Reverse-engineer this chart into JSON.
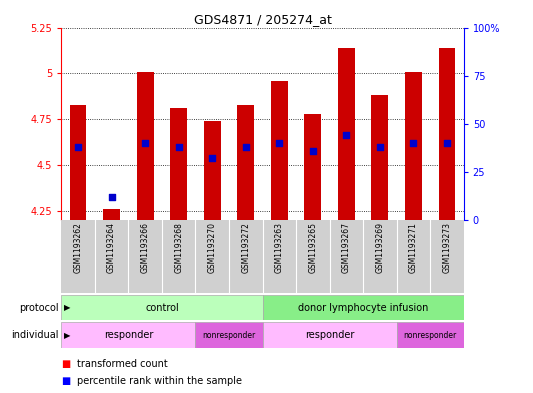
{
  "title": "GDS4871 / 205274_at",
  "samples": [
    "GSM1193262",
    "GSM1193264",
    "GSM1193266",
    "GSM1193268",
    "GSM1193270",
    "GSM1193272",
    "GSM1193263",
    "GSM1193265",
    "GSM1193267",
    "GSM1193269",
    "GSM1193271",
    "GSM1193273"
  ],
  "transformed_counts": [
    4.83,
    4.26,
    5.01,
    4.81,
    4.74,
    4.83,
    4.96,
    4.78,
    5.14,
    4.88,
    5.01,
    5.14
  ],
  "percentile_ranks": [
    38,
    12,
    40,
    38,
    32,
    38,
    40,
    36,
    44,
    38,
    40,
    40
  ],
  "ylim_left": [
    4.2,
    5.25
  ],
  "ylim_right": [
    0,
    100
  ],
  "right_ticks": [
    0,
    25,
    50,
    75,
    100
  ],
  "right_tick_labels": [
    "0",
    "25",
    "50",
    "75",
    "100%"
  ],
  "left_ticks": [
    4.25,
    4.5,
    4.75,
    5.0,
    5.25
  ],
  "left_tick_labels": [
    "4.25",
    "4.5",
    "4.75",
    "5",
    "5.25"
  ],
  "bar_color": "#cc0000",
  "dot_color": "#0000cc",
  "plot_bg": "#ffffff",
  "protocol_groups": [
    {
      "label": "control",
      "start": 0,
      "end": 6,
      "color": "#bbffbb"
    },
    {
      "label": "donor lymphocyte infusion",
      "start": 6,
      "end": 12,
      "color": "#88ee88"
    }
  ],
  "individual_groups": [
    {
      "label": "responder",
      "start": 0,
      "end": 4,
      "color": "#ffbbff"
    },
    {
      "label": "nonresponder",
      "start": 4,
      "end": 6,
      "color": "#dd66dd"
    },
    {
      "label": "responder",
      "start": 6,
      "end": 10,
      "color": "#ffbbff"
    },
    {
      "label": "nonresponder",
      "start": 10,
      "end": 12,
      "color": "#dd66dd"
    }
  ],
  "bar_bottom": 4.2,
  "bar_width": 0.5,
  "dot_size": 18,
  "legend_red": "transformed count",
  "legend_blue": "percentile rank within the sample",
  "protocol_label": "protocol",
  "individual_label": "individual"
}
